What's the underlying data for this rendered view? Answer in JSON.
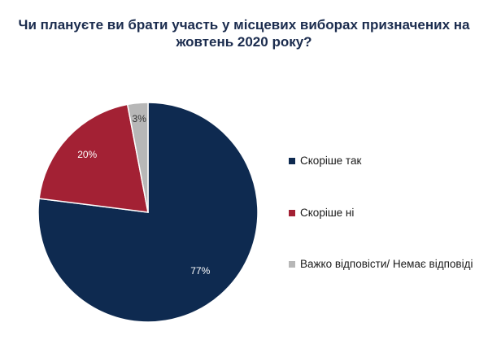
{
  "chart_data": {
    "type": "pie",
    "title": "Чи плануєте ви брати участь у місцевих виборах призначених на жовтень 2020 року?",
    "start_angle_deg": 0,
    "direction": "clockwise",
    "legend_position": "right",
    "slices": [
      {
        "label": "Скоріше так",
        "value": 77,
        "display": "77%",
        "color": "#0e2a50"
      },
      {
        "label": "Скоріше ні",
        "value": 20,
        "display": "20%",
        "color": "#a32134"
      },
      {
        "label": "Важко відповісти/ Немає відповіді",
        "value": 3,
        "display": "3%",
        "color": "#b7b7b7"
      }
    ]
  }
}
